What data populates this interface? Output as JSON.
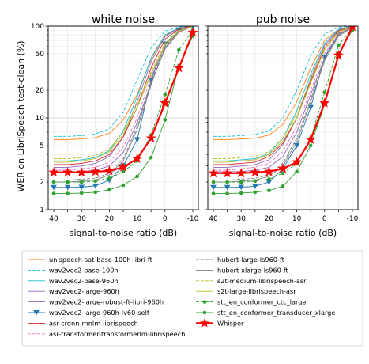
{
  "chart_data": [
    {
      "type": "line",
      "title": "white noise",
      "xlabel": "signal-to-noise ratio (dB)",
      "ylabel": "WER on LibriSpeech test-clean (%)",
      "x": [
        40,
        35,
        30,
        25,
        20,
        15,
        10,
        5,
        0,
        -5,
        -10
      ],
      "x_reversed": true,
      "xlim": [
        42,
        -12
      ],
      "ylim": [
        1,
        100
      ],
      "yscale": "log",
      "grid": true,
      "series": [
        {
          "name": "unispeech-sat-base-100h-libri-ft",
          "values": [
            5.8,
            5.8,
            5.9,
            6.1,
            6.8,
            9.5,
            18,
            44,
            78,
            95,
            100
          ]
        },
        {
          "name": "wav2vec2-base-100h",
          "values": [
            6.3,
            6.3,
            6.4,
            6.7,
            7.6,
            11.5,
            26,
            58,
            88,
            98,
            100
          ]
        },
        {
          "name": "wav2vec2-base-960h",
          "values": [
            3.4,
            3.4,
            3.5,
            3.7,
            4.4,
            7.2,
            17,
            45,
            80,
            96,
            100
          ]
        },
        {
          "name": "wav2vec2-large-960h",
          "values": [
            2.9,
            2.9,
            3.0,
            3.2,
            3.8,
            6.2,
            15,
            41,
            77,
            95,
            100
          ]
        },
        {
          "name": "wav2vec2-large-robust-ft-libri-960h",
          "values": [
            2.6,
            2.6,
            2.6,
            2.7,
            3.0,
            4.2,
            8.8,
            24,
            56,
            86,
            99
          ]
        },
        {
          "name": "wav2vec2-large-960h-lv60-self",
          "values": [
            1.75,
            1.75,
            1.76,
            1.82,
            2.1,
            3.0,
            5.8,
            26,
            64,
            90,
            100
          ]
        },
        {
          "name": "asr-crdnn-rnnlm-librispeech",
          "values": [
            3.1,
            3.1,
            3.2,
            3.4,
            4.0,
            6.2,
            13,
            35,
            72,
            93,
            100
          ]
        },
        {
          "name": "asr-transformer-transformerlm-librispeech",
          "values": [
            2.7,
            2.7,
            2.8,
            2.9,
            3.3,
            4.8,
            10,
            28,
            62,
            88,
            100
          ]
        },
        {
          "name": "hubert-large-ls960-ft",
          "values": [
            2.1,
            2.1,
            2.15,
            2.2,
            2.5,
            3.6,
            8.0,
            25,
            60,
            88,
            100
          ]
        },
        {
          "name": "hubert-xlarge-ls960-ft",
          "values": [
            2.0,
            2.0,
            2.05,
            2.1,
            2.4,
            3.4,
            7.5,
            23,
            58,
            87,
            100
          ]
        },
        {
          "name": "s2t-medium-librispeech-asr",
          "values": [
            3.6,
            3.6,
            3.7,
            3.9,
            4.6,
            7.0,
            14,
            32,
            65,
            90,
            100
          ]
        },
        {
          "name": "s2t-large-librispeech-asr",
          "values": [
            3.3,
            3.3,
            3.4,
            3.6,
            4.3,
            6.6,
            13,
            30,
            62,
            88,
            100
          ]
        },
        {
          "name": "stt_en_conformer_ctc_large",
          "values": [
            2.0,
            2.0,
            2.0,
            2.05,
            2.2,
            2.6,
            3.4,
            6.5,
            18,
            55,
            90
          ]
        },
        {
          "name": "stt_en_conformer_transducer_xlarge",
          "values": [
            1.5,
            1.5,
            1.52,
            1.55,
            1.65,
            1.85,
            2.3,
            3.7,
            9.5,
            37,
            78
          ]
        },
        {
          "name": "Whisper",
          "values": [
            2.55,
            2.55,
            2.55,
            2.6,
            2.65,
            2.9,
            3.6,
            6.0,
            14.5,
            35,
            85
          ]
        }
      ]
    },
    {
      "type": "line",
      "title": "pub noise",
      "xlabel": "signal-to-noise ratio (dB)",
      "x": [
        40,
        35,
        30,
        25,
        20,
        15,
        10,
        5,
        0,
        -5,
        -10
      ],
      "x_reversed": true,
      "xlim": [
        42,
        -12
      ],
      "ylim": [
        1,
        100
      ],
      "yscale": "log",
      "grid": true,
      "series": [
        {
          "name": "unispeech-sat-base-100h-libri-ft",
          "values": [
            5.8,
            5.8,
            5.9,
            6.0,
            6.5,
            8.5,
            15,
            35,
            70,
            92,
            100
          ]
        },
        {
          "name": "wav2vec2-base-100h",
          "values": [
            6.3,
            6.3,
            6.4,
            6.6,
            7.2,
            10,
            20,
            48,
            82,
            97,
            100
          ]
        },
        {
          "name": "wav2vec2-base-960h",
          "values": [
            3.4,
            3.4,
            3.5,
            3.6,
            4.1,
            6.0,
            12,
            30,
            65,
            92,
            100
          ]
        },
        {
          "name": "wav2vec2-large-960h",
          "values": [
            2.9,
            2.9,
            3.0,
            3.1,
            3.5,
            5.1,
            10,
            27,
            62,
            90,
            100
          ]
        },
        {
          "name": "wav2vec2-large-robust-ft-libri-960h",
          "values": [
            2.6,
            2.6,
            2.6,
            2.7,
            2.9,
            3.8,
            7.0,
            18,
            45,
            78,
            97
          ]
        },
        {
          "name": "wav2vec2-large-960h-lv60-self",
          "values": [
            1.75,
            1.75,
            1.76,
            1.8,
            2.0,
            2.8,
            5.0,
            13,
            46,
            82,
            98
          ]
        },
        {
          "name": "asr-crdnn-rnnlm-librispeech",
          "values": [
            3.1,
            3.1,
            3.2,
            3.3,
            3.8,
            5.3,
            10,
            25,
            58,
            88,
            100
          ]
        },
        {
          "name": "asr-transformer-transformerlm-librispeech",
          "values": [
            2.7,
            2.7,
            2.8,
            2.9,
            3.2,
            4.3,
            8.0,
            20,
            50,
            82,
            99
          ]
        },
        {
          "name": "hubert-large-ls960-ft",
          "values": [
            2.1,
            2.1,
            2.15,
            2.2,
            2.4,
            3.2,
            6.0,
            16,
            45,
            80,
            98
          ]
        },
        {
          "name": "hubert-xlarge-ls960-ft",
          "values": [
            2.0,
            2.0,
            2.05,
            2.1,
            2.3,
            3.0,
            5.5,
            15,
            42,
            78,
            97
          ]
        },
        {
          "name": "s2t-medium-librispeech-asr",
          "values": [
            3.6,
            3.6,
            3.7,
            3.8,
            4.3,
            6.0,
            11,
            26,
            58,
            87,
            100
          ]
        },
        {
          "name": "s2t-large-librispeech-asr",
          "values": [
            3.3,
            3.3,
            3.4,
            3.5,
            4.0,
            5.6,
            10,
            24,
            55,
            85,
            100
          ]
        },
        {
          "name": "stt_en_conformer_ctc_large",
          "values": [
            2.0,
            2.0,
            2.0,
            2.05,
            2.15,
            2.5,
            3.2,
            6.0,
            19,
            62,
            95
          ]
        },
        {
          "name": "stt_en_conformer_transducer_xlarge",
          "values": [
            1.5,
            1.5,
            1.52,
            1.55,
            1.62,
            1.8,
            2.6,
            5.0,
            14,
            50,
            90
          ]
        },
        {
          "name": "Whisper",
          "values": [
            2.5,
            2.5,
            2.5,
            2.55,
            2.6,
            2.8,
            3.3,
            5.8,
            14.5,
            48,
            98
          ]
        }
      ]
    }
  ],
  "styles": [
    {
      "color": "#ff7f0e",
      "dash": "",
      "marker": "none"
    },
    {
      "color": "#17becf",
      "dash": "4,2",
      "marker": "none"
    },
    {
      "color": "#17becf",
      "dash": "",
      "marker": "none"
    },
    {
      "color": "#9467bd",
      "dash": "",
      "marker": "none"
    },
    {
      "color": "#9467bd",
      "dash": "",
      "marker": "none"
    },
    {
      "color": "#1f77b4",
      "dash": "",
      "marker": "triangle"
    },
    {
      "color": "#d62728",
      "dash": "",
      "marker": "none"
    },
    {
      "color": "#e377c2",
      "dash": "4,2",
      "marker": "none"
    },
    {
      "color": "#7f7f7f",
      "dash": "4,2",
      "marker": "none"
    },
    {
      "color": "#7f7f7f",
      "dash": "",
      "marker": "none"
    },
    {
      "color": "#bcbd22",
      "dash": "4,2",
      "marker": "none"
    },
    {
      "color": "#bcbd22",
      "dash": "",
      "marker": "none"
    },
    {
      "color": "#2ca02c",
      "dash": "4,2",
      "marker": "dot"
    },
    {
      "color": "#2ca02c",
      "dash": "",
      "marker": "dot"
    },
    {
      "color": "#ff0000",
      "dash": "",
      "marker": "star"
    }
  ],
  "x_tick_labels": [
    "40",
    "30",
    "20",
    "10",
    "0",
    "-10"
  ],
  "y_tick_labels": [
    "1",
    "2",
    "5",
    "10",
    "20",
    "50",
    "100"
  ]
}
